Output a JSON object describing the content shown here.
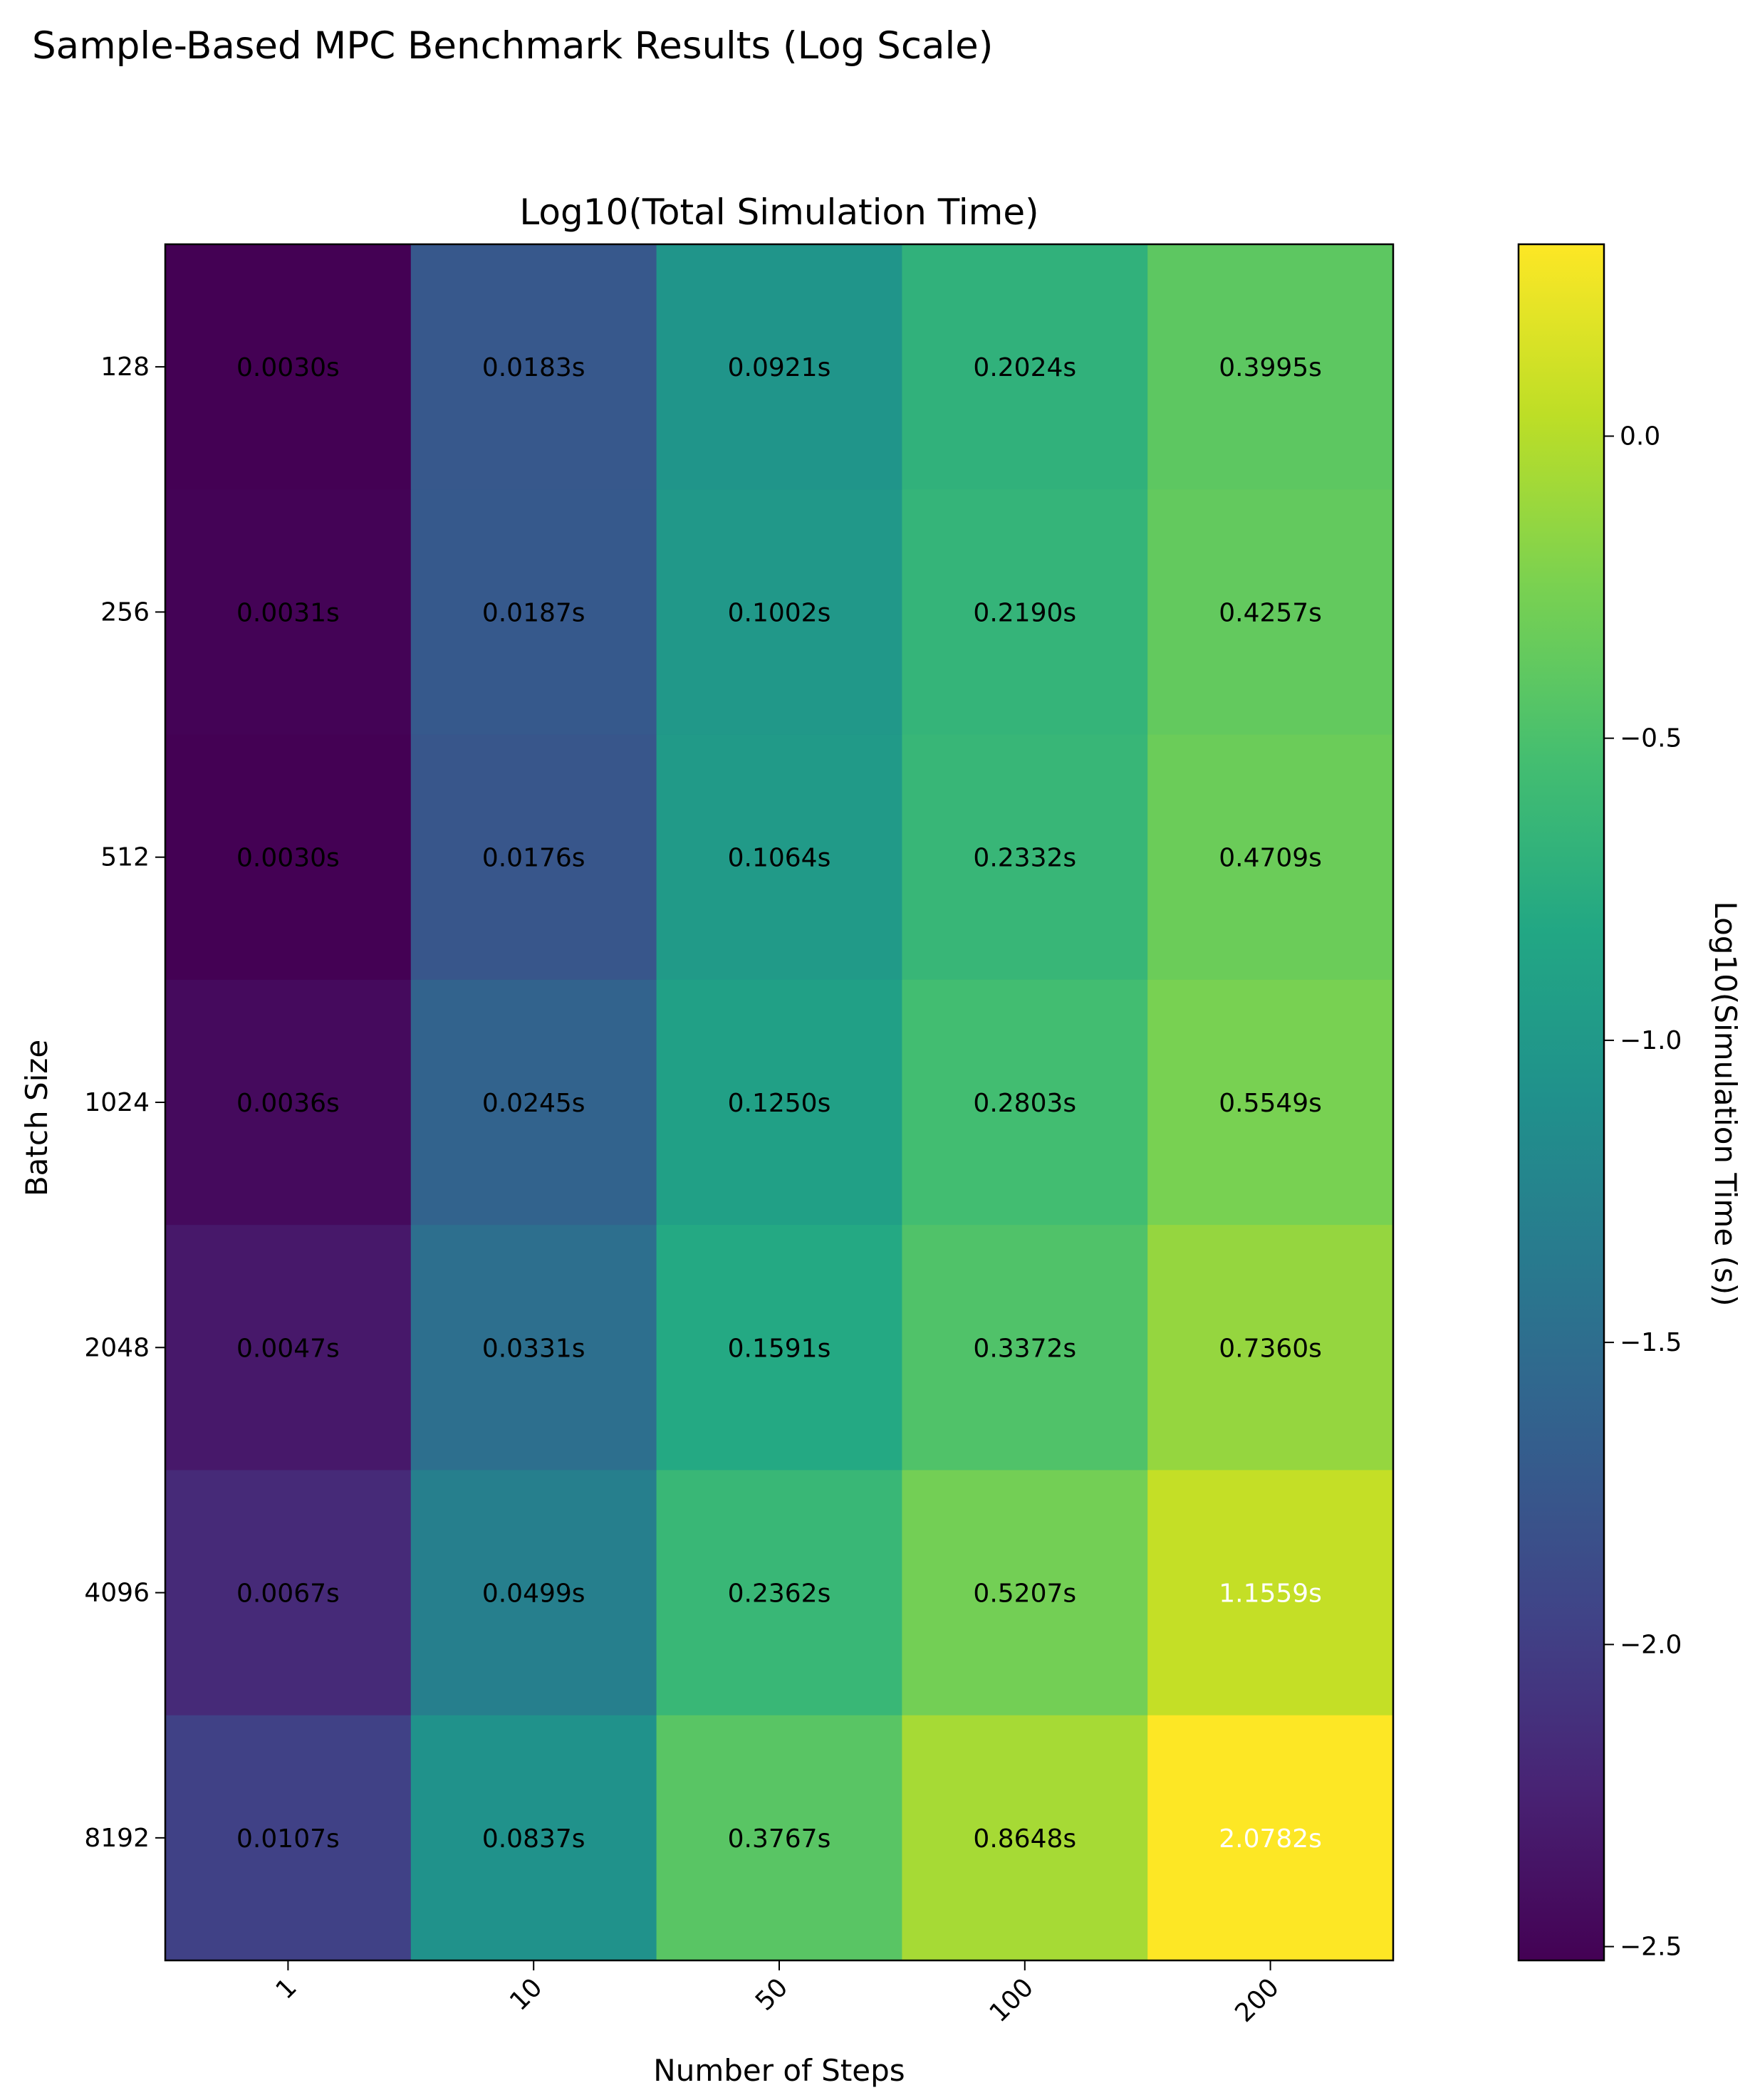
{
  "figure": {
    "suptitle": "Sample-Based MPC Benchmark Results (Log Scale)"
  },
  "chart_data": {
    "type": "heatmap",
    "title": "Log10(Total Simulation Time)",
    "xlabel": "Number of Steps",
    "ylabel": "Batch Size",
    "x_categories": [
      "1",
      "10",
      "50",
      "100",
      "200"
    ],
    "y_categories": [
      "128",
      "256",
      "512",
      "1024",
      "2048",
      "4096",
      "8192"
    ],
    "values_seconds": [
      [
        0.003,
        0.0183,
        0.0921,
        0.2024,
        0.3995
      ],
      [
        0.0031,
        0.0187,
        0.1002,
        0.219,
        0.4257
      ],
      [
        0.003,
        0.0176,
        0.1064,
        0.2332,
        0.4709
      ],
      [
        0.0036,
        0.0245,
        0.125,
        0.2803,
        0.5549
      ],
      [
        0.0047,
        0.0331,
        0.1591,
        0.3372,
        0.736
      ],
      [
        0.0067,
        0.0499,
        0.2362,
        0.5207,
        1.1559
      ],
      [
        0.0107,
        0.0837,
        0.3767,
        0.8648,
        2.0782
      ]
    ],
    "cell_labels": [
      [
        "0.0030s",
        "0.0183s",
        "0.0921s",
        "0.2024s",
        "0.3995s"
      ],
      [
        "0.0031s",
        "0.0187s",
        "0.1002s",
        "0.2190s",
        "0.4257s"
      ],
      [
        "0.0030s",
        "0.0176s",
        "0.1064s",
        "0.2332s",
        "0.4709s"
      ],
      [
        "0.0036s",
        "0.0245s",
        "0.1250s",
        "0.2803s",
        "0.5549s"
      ],
      [
        "0.0047s",
        "0.0331s",
        "0.1591s",
        "0.3372s",
        "0.7360s"
      ],
      [
        "0.0067s",
        "0.0499s",
        "0.2362s",
        "0.5207s",
        "1.1559s"
      ],
      [
        "0.0107s",
        "0.0837s",
        "0.3767s",
        "0.8648s",
        "2.0782s"
      ]
    ],
    "colormap": "viridis",
    "color_scale": "log10",
    "colorbar": {
      "label": "Log10(Simulation Time (s))",
      "range": [
        -2.5229,
        0.3176
      ],
      "ticks": [
        0.0,
        -0.5,
        -1.0,
        -1.5,
        -2.0,
        -2.5
      ],
      "tick_labels": [
        "0.0",
        "−0.5",
        "−1.0",
        "−1.5",
        "−2.0",
        "−2.5"
      ]
    },
    "grid": false
  },
  "colors": {
    "text": "#000000",
    "text_on_bright": "#ffffff",
    "frame": "#000000"
  }
}
